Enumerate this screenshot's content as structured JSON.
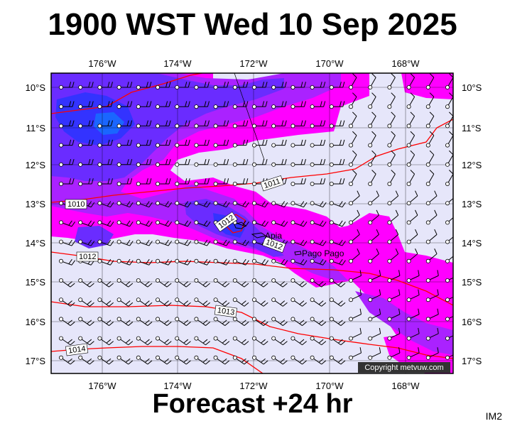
{
  "title": "1900 WST Wed 10 Sep 2025",
  "subtitle": "Forecast +24 hr",
  "image_code": "IM2",
  "copyright": "Copyright metvuw.com",
  "map": {
    "lon_ticks": [
      "176°W",
      "174°W",
      "172°W",
      "170°W",
      "168°W"
    ],
    "lat_ticks": [
      "10°S",
      "11°S",
      "12°S",
      "13°S",
      "14°S",
      "15°S",
      "16°S",
      "17°S"
    ],
    "isobar_labels": [
      "1010",
      "1011",
      "1012",
      "1012",
      "1012",
      "1013",
      "1014"
    ],
    "places": [
      "Apia",
      "Pago Pago"
    ],
    "colors": {
      "background": "#e6e6fa",
      "rain_magenta": "#ff00ff",
      "rain_purple": "#aa22ff",
      "rain_violet": "#6a2cff",
      "rain_blue": "#3333ff",
      "isobar": "#ff0000"
    }
  }
}
